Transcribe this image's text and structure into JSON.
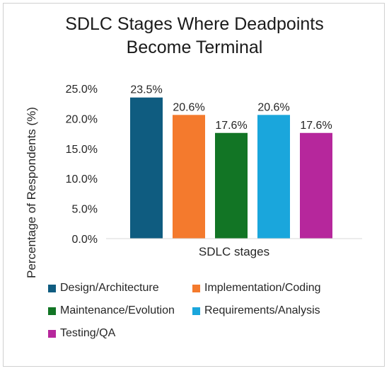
{
  "chart_data": {
    "type": "bar",
    "title": "SDLC Stages Where Deadpoints Become Terminal",
    "title_lines": [
      "SDLC Stages Where Deadpoints",
      "Become Terminal"
    ],
    "xlabel": "SDLC stages",
    "ylabel": "Percentage of Respondents (%)",
    "ylim": [
      0,
      25
    ],
    "yticks": [
      0,
      5,
      10,
      15,
      20,
      25
    ],
    "ytick_labels": [
      "0.0%",
      "5.0%",
      "10.0%",
      "15.0%",
      "20.0%",
      "25.0%"
    ],
    "grid": false,
    "legend_position": "bottom",
    "series": [
      {
        "name": "Design/Architecture",
        "value": 23.5,
        "label": "23.5%",
        "color": "#0f5c80"
      },
      {
        "name": "Implementation/Coding",
        "value": 20.6,
        "label": "20.6%",
        "color": "#f47a2d"
      },
      {
        "name": "Maintenance/Evolution",
        "value": 17.6,
        "label": "17.6%",
        "color": "#127525"
      },
      {
        "name": "Requirements/Analysis",
        "value": 20.6,
        "label": "20.6%",
        "color": "#1aa6dc"
      },
      {
        "name": "Testing/QA",
        "value": 17.6,
        "label": "17.6%",
        "color": "#b6279c"
      }
    ]
  }
}
